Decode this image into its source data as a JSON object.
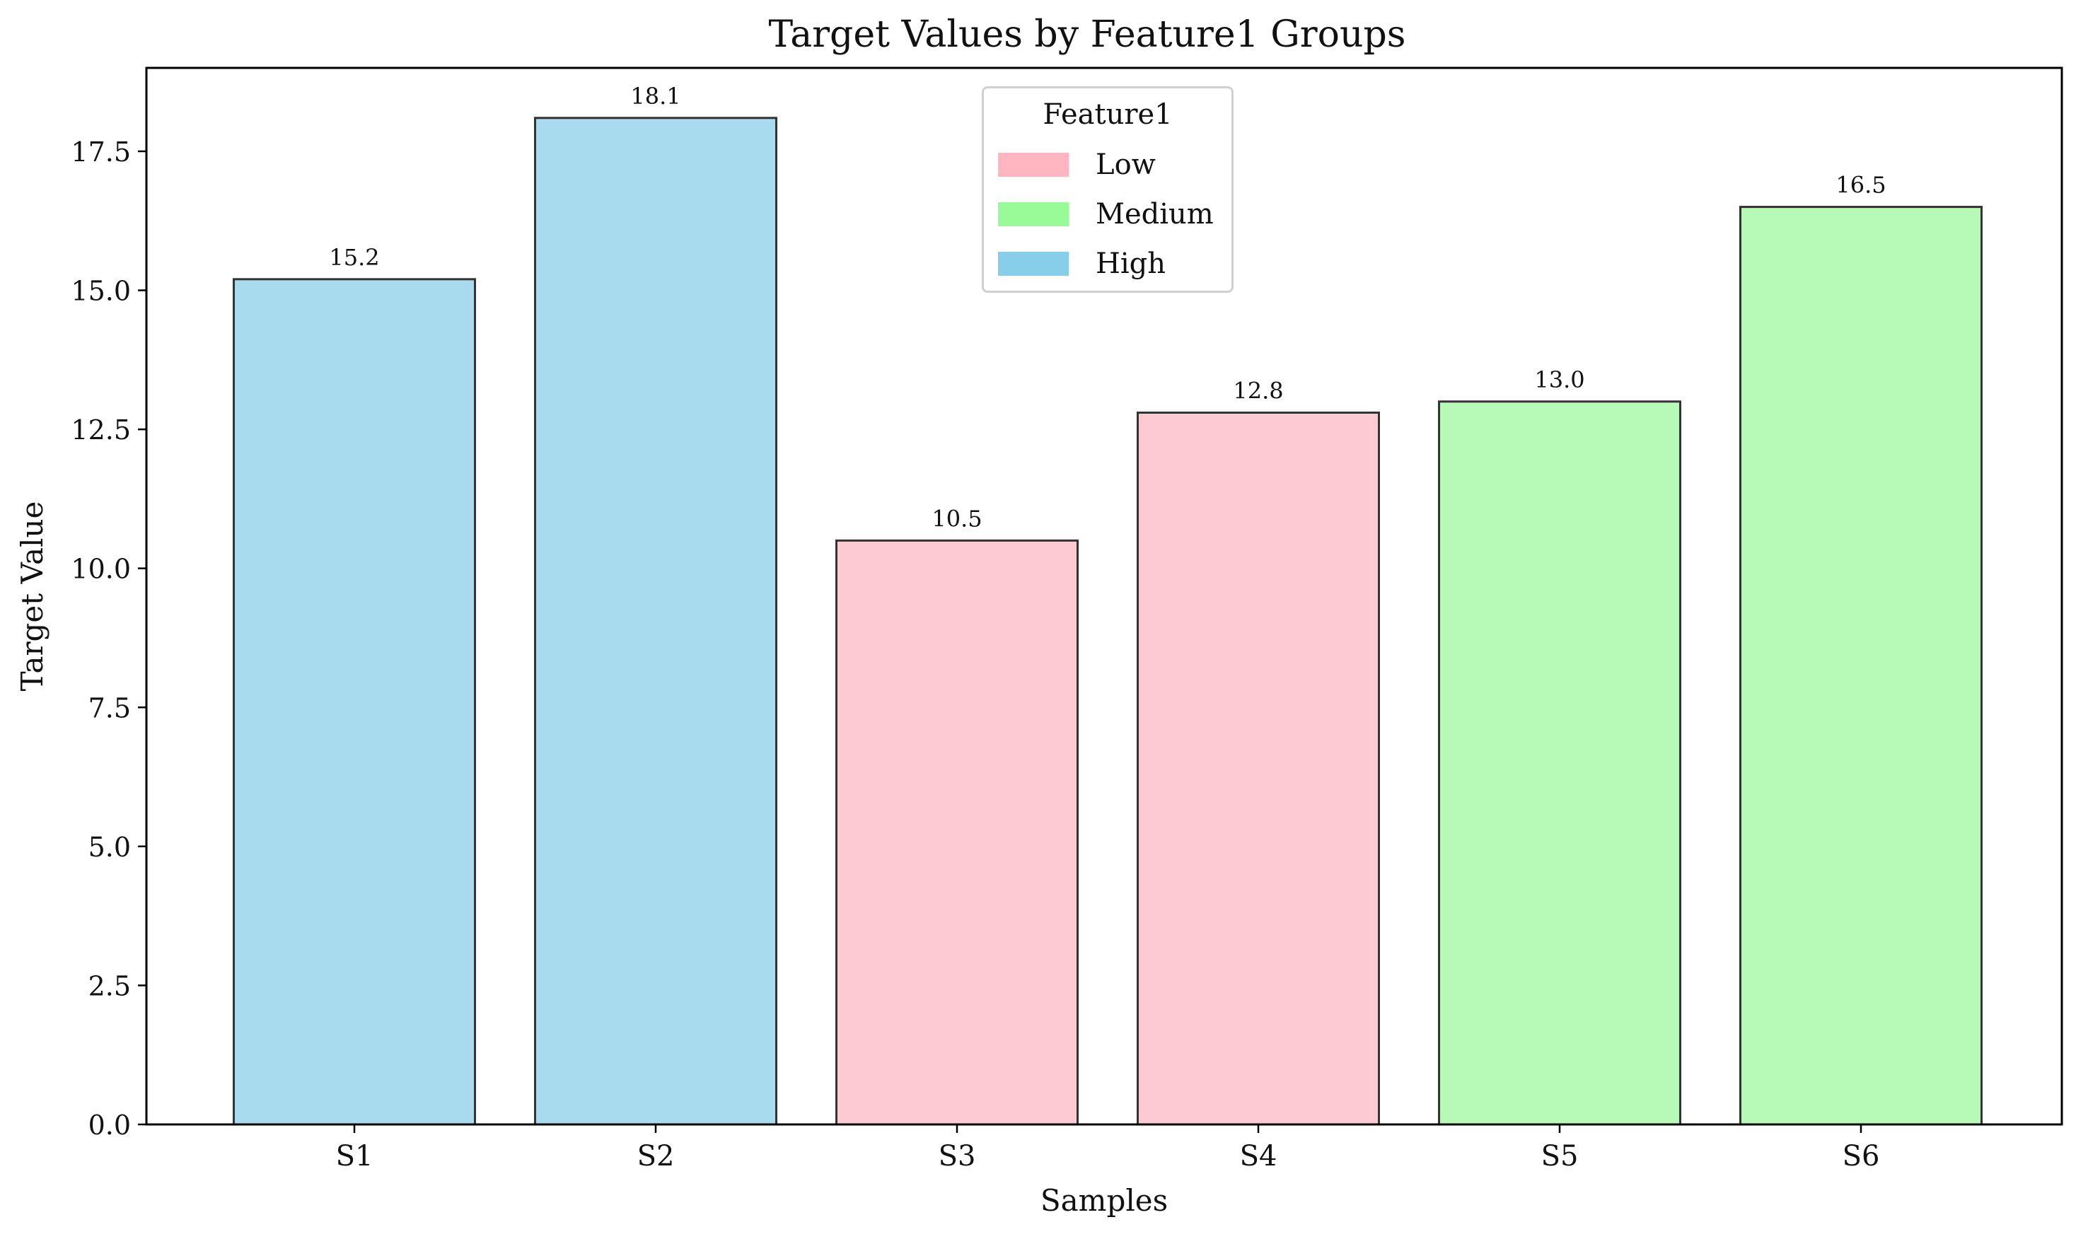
{
  "chart_data": {
    "type": "bar",
    "title": "Target Values by Feature1 Groups",
    "xlabel": "Samples",
    "ylabel": "Target Value",
    "categories": [
      "S1",
      "S2",
      "S3",
      "S4",
      "S5",
      "S6"
    ],
    "values": [
      15.2,
      18.1,
      10.5,
      12.8,
      13.0,
      16.5
    ],
    "value_labels": [
      "15.2",
      "18.1",
      "10.5",
      "12.8",
      "13.0",
      "16.5"
    ],
    "groups": [
      "High",
      "High",
      "Low",
      "Low",
      "Medium",
      "Medium"
    ],
    "ylim": [
      0,
      19
    ],
    "yticks": [
      0.0,
      2.5,
      5.0,
      7.5,
      10.0,
      12.5,
      15.0,
      17.5
    ],
    "ytick_labels": [
      "0.0",
      "2.5",
      "5.0",
      "7.5",
      "10.0",
      "12.5",
      "15.0",
      "17.5"
    ],
    "grid": false,
    "legend": {
      "title": "Feature1",
      "placement": "upper center",
      "entries": [
        {
          "label": "Low",
          "color": "#ffb6c1"
        },
        {
          "label": "Medium",
          "color": "#98fb98"
        },
        {
          "label": "High",
          "color": "#87ceeb"
        }
      ]
    },
    "bar_colors": {
      "High": "#a9dbee",
      "Low": "#fdc9d2",
      "Medium": "#b7f9b7"
    },
    "bar_edge_color": "#333333"
  }
}
